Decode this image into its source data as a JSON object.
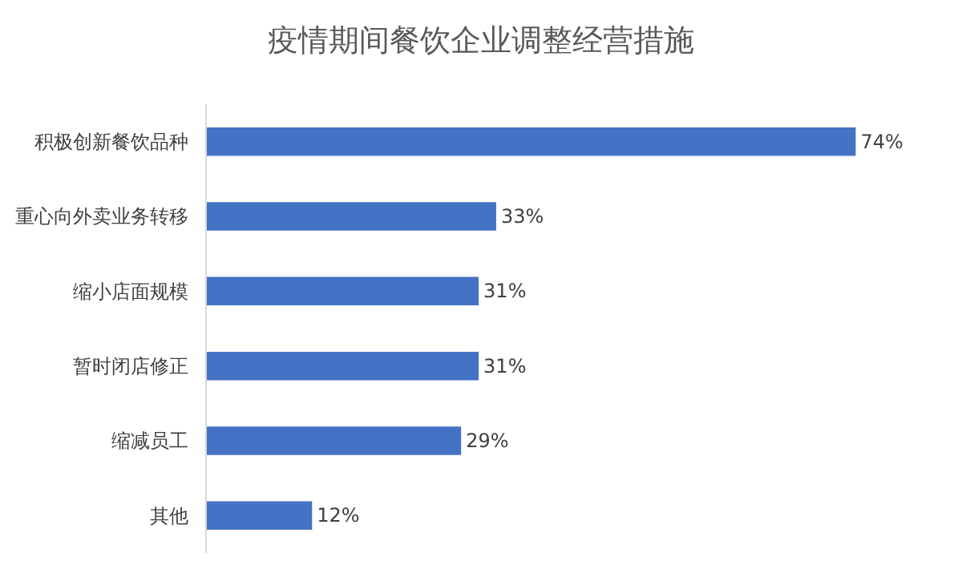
{
  "chart_data": {
    "type": "bar",
    "orientation": "horizontal",
    "title": "疫情期间餐饮企业调整经营措施",
    "categories": [
      "积极创新餐饮品种",
      "重心向外卖业务转移",
      "缩小店面规模",
      "暂时闭店修正",
      "缩减员工",
      "其他"
    ],
    "values": [
      74,
      33,
      31,
      31,
      29,
      12
    ],
    "value_labels": [
      "74%",
      "33%",
      "31%",
      "31%",
      "29%",
      "12%"
    ],
    "color": "#4472c4",
    "tick_labels": "y"
  }
}
